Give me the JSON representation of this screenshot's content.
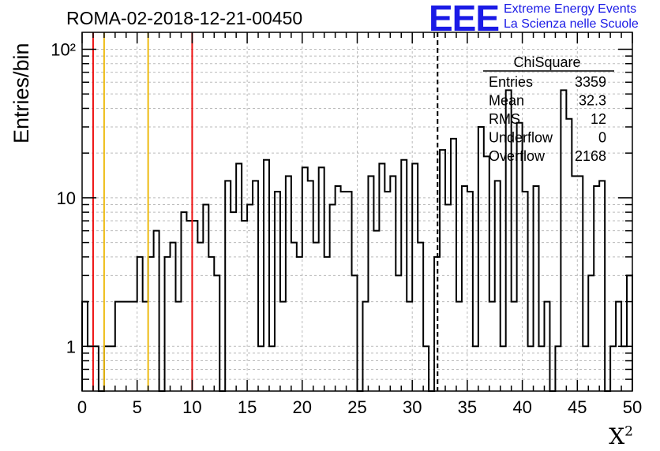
{
  "page": {
    "title": "ROMA-02-2018-12-21-00450",
    "logo_text": "EEE",
    "logo_line1": "Extreme Energy Events",
    "logo_line2": "La Scienza nelle Scuole",
    "xlabel_base": "X",
    "xlabel_sup": "2"
  },
  "colors": {
    "red": "#ee1111",
    "yellow": "#eebb11",
    "logo": "#1a1ae6",
    "grid": "#bbbbbb"
  },
  "stats_box": {
    "title": "ChiSquare",
    "rows": [
      {
        "label": "Entries",
        "value": "3359"
      },
      {
        "label": "Mean",
        "value": "32.3"
      },
      {
        "label": "RMS",
        "value": "12"
      },
      {
        "label": "Underflow",
        "value": "0"
      },
      {
        "label": "Overflow",
        "value": "2168"
      }
    ]
  },
  "chart_data": {
    "type": "histogram",
    "ylabel": "Entries/bin",
    "xlim": [
      0,
      50
    ],
    "ylim": [
      0.5,
      130
    ],
    "yscale": "log",
    "grid": true,
    "x_ticks": [
      "0",
      "5",
      "10",
      "15",
      "20",
      "25",
      "30",
      "35",
      "40",
      "45",
      "50"
    ],
    "y_ticks": [
      "1",
      "10",
      "10²"
    ],
    "bin_width": 0.5,
    "bin_start": 0,
    "counts": [
      2,
      1,
      1,
      0,
      1,
      1,
      2,
      2,
      2,
      2,
      4,
      2,
      4,
      6,
      0,
      4,
      5,
      2,
      8,
      7,
      7,
      5,
      9,
      4,
      3,
      0,
      13,
      8,
      17,
      7,
      9,
      13,
      1,
      18,
      1,
      11,
      2,
      14,
      5,
      4,
      16,
      13,
      5,
      16,
      4,
      9,
      12,
      11,
      11,
      3,
      0,
      2,
      14,
      6,
      17,
      11,
      14,
      3,
      18,
      2,
      17,
      5,
      1,
      0,
      4,
      21,
      9,
      25,
      2,
      12,
      11,
      1,
      30,
      19,
      2,
      13,
      1,
      53,
      2,
      32,
      11,
      1,
      12,
      1,
      2,
      0,
      1,
      53,
      34,
      14,
      14,
      1,
      3,
      12,
      13,
      0,
      1,
      2,
      1,
      3
    ],
    "vlines": [
      {
        "x": 1,
        "color": "red",
        "style": "solid"
      },
      {
        "x": 2,
        "color": "yellow",
        "style": "solid"
      },
      {
        "x": 6,
        "color": "yellow",
        "style": "solid"
      },
      {
        "x": 10,
        "color": "red",
        "style": "solid"
      },
      {
        "x": 32.3,
        "color": "black",
        "style": "dashed"
      }
    ]
  }
}
